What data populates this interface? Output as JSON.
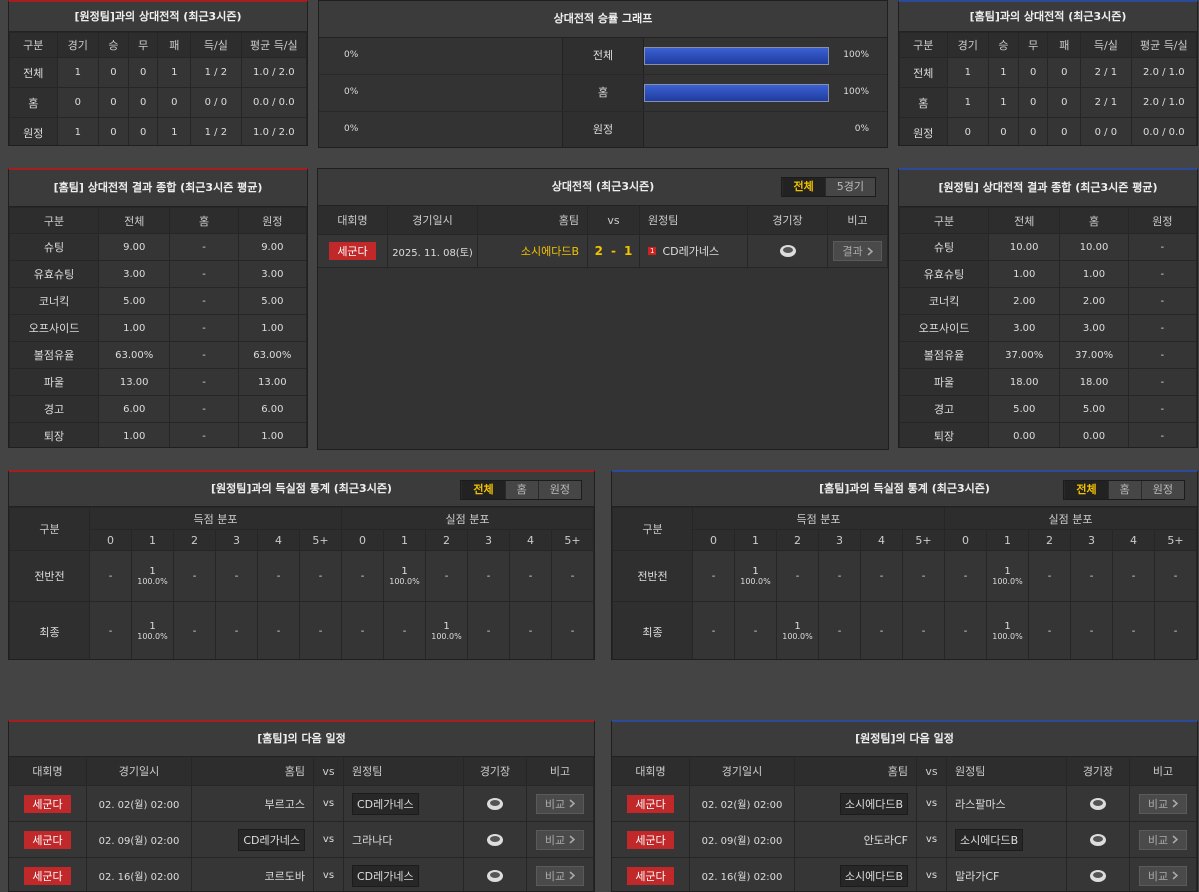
{
  "away_team_record": {
    "title": "[원정팀]과의 상대전적 (최근3시즌)",
    "columns": [
      "구분",
      "경기",
      "승",
      "무",
      "패",
      "득/실",
      "평균 득/실"
    ],
    "rows": [
      [
        "전체",
        "1",
        "0",
        "0",
        "1",
        "1 / 2",
        "1.0 / 2.0"
      ],
      [
        "홈",
        "0",
        "0",
        "0",
        "0",
        "0 / 0",
        "0.0 / 0.0"
      ],
      [
        "원정",
        "1",
        "0",
        "0",
        "1",
        "1 / 2",
        "1.0 / 2.0"
      ]
    ]
  },
  "win_rate_graph": {
    "title": "상대전적 승률 그래프",
    "rows": [
      {
        "left": "0%",
        "label": "전체",
        "right": "100%"
      },
      {
        "left": "0%",
        "label": "홈",
        "right": "100%"
      },
      {
        "left": "0%",
        "label": "원정",
        "right": "0%"
      }
    ]
  },
  "home_team_record": {
    "title": "[홈팀]과의 상대전적 (최근3시즌)",
    "columns": [
      "구분",
      "경기",
      "승",
      "무",
      "패",
      "득/실",
      "평균 득/실"
    ],
    "rows": [
      [
        "전체",
        "1",
        "1",
        "0",
        "0",
        "2 / 1",
        "2.0 / 1.0"
      ],
      [
        "홈",
        "1",
        "1",
        "0",
        "0",
        "2 / 1",
        "2.0 / 1.0"
      ],
      [
        "원정",
        "0",
        "0",
        "0",
        "0",
        "0 / 0",
        "0.0 / 0.0"
      ]
    ]
  },
  "home_summary": {
    "title": "[홈팀] 상대전적 결과 종합 (최근3시즌 평균)",
    "columns": [
      "구분",
      "전체",
      "홈",
      "원정"
    ],
    "rows": [
      [
        "슈팅",
        "9.00",
        "-",
        "9.00"
      ],
      [
        "유효슈팅",
        "3.00",
        "-",
        "3.00"
      ],
      [
        "코너킥",
        "5.00",
        "-",
        "5.00"
      ],
      [
        "오프사이드",
        "1.00",
        "-",
        "1.00"
      ],
      [
        "볼점유율",
        "63.00%",
        "-",
        "63.00%"
      ],
      [
        "파울",
        "13.00",
        "-",
        "13.00"
      ],
      [
        "경고",
        "6.00",
        "-",
        "6.00"
      ],
      [
        "퇴장",
        "1.00",
        "-",
        "1.00"
      ]
    ]
  },
  "head_to_head": {
    "title": "상대전적 (최근3시즌)",
    "tabs": [
      "전체",
      "5경기"
    ],
    "columns": [
      "대회명",
      "경기일시",
      "홈팀",
      "vs",
      "원정팀",
      "경기장",
      "비고"
    ],
    "matches": [
      {
        "league": "세군다",
        "date": "2025. 11. 08(토)",
        "home": "소시에다드B",
        "home_score": "2",
        "separator": "-",
        "away_score": "1",
        "red_cards": "1",
        "away": "CD레가네스",
        "note": "결과"
      }
    ]
  },
  "away_summary": {
    "title": "[원정팀] 상대전적 결과 종합 (최근3시즌 평균)",
    "columns": [
      "구분",
      "전체",
      "홈",
      "원정"
    ],
    "rows": [
      [
        "슈팅",
        "10.00",
        "10.00",
        "-"
      ],
      [
        "유효슈팅",
        "1.00",
        "1.00",
        "-"
      ],
      [
        "코너킥",
        "2.00",
        "2.00",
        "-"
      ],
      [
        "오프사이드",
        "3.00",
        "3.00",
        "-"
      ],
      [
        "볼점유율",
        "37.00%",
        "37.00%",
        "-"
      ],
      [
        "파울",
        "18.00",
        "18.00",
        "-"
      ],
      [
        "경고",
        "5.00",
        "5.00",
        "-"
      ],
      [
        "퇴장",
        "0.00",
        "0.00",
        "-"
      ]
    ]
  },
  "away_goal_stats": {
    "title": "[원정팀]과의 득실점 통계 (최근3시즌)",
    "tabs": [
      "전체",
      "홈",
      "원정"
    ],
    "row_header": "구분",
    "scored_title": "득점 분포",
    "conceded_title": "실점 분포",
    "scored_buckets": [
      "0",
      "1",
      "2",
      "3",
      "4",
      "5+"
    ],
    "conceded_buckets": [
      "0",
      "1",
      "2",
      "3",
      "4",
      "5+"
    ],
    "rows": [
      {
        "label": "전반전",
        "scored": [
          "-",
          {
            "count": "1",
            "pct": "100.0%"
          },
          "-",
          "-",
          "-",
          "-"
        ],
        "conceded": [
          "-",
          {
            "count": "1",
            "pct": "100.0%"
          },
          "-",
          "-",
          "-",
          "-"
        ]
      },
      {
        "label": "최종",
        "scored": [
          "-",
          {
            "count": "1",
            "pct": "100.0%"
          },
          "-",
          "-",
          "-",
          "-"
        ],
        "conceded": [
          "-",
          "-",
          {
            "count": "1",
            "pct": "100.0%"
          },
          "-",
          "-",
          "-"
        ]
      }
    ]
  },
  "home_goal_stats": {
    "title": "[홈팀]과의 득실점 통계 (최근3시즌)",
    "tabs": [
      "전체",
      "홈",
      "원정"
    ],
    "row_header": "구분",
    "scored_title": "득점 분포",
    "conceded_title": "실점 분포",
    "scored_buckets": [
      "0",
      "1",
      "2",
      "3",
      "4",
      "5+"
    ],
    "conceded_buckets": [
      "0",
      "1",
      "2",
      "3",
      "4",
      "5+"
    ],
    "rows": [
      {
        "label": "전반전",
        "scored": [
          "-",
          {
            "count": "1",
            "pct": "100.0%"
          },
          "-",
          "-",
          "-",
          "-"
        ],
        "conceded": [
          "-",
          {
            "count": "1",
            "pct": "100.0%"
          },
          "-",
          "-",
          "-",
          "-"
        ]
      },
      {
        "label": "최종",
        "scored": [
          "-",
          "-",
          {
            "count": "1",
            "pct": "100.0%"
          },
          "-",
          "-",
          "-"
        ],
        "conceded": [
          "-",
          {
            "count": "1",
            "pct": "100.0%"
          },
          "-",
          "-",
          "-",
          "-"
        ]
      }
    ]
  },
  "home_schedule": {
    "title": "[홈팀]의 다음 일정",
    "columns": [
      "대회명",
      "경기일시",
      "홈팀",
      "vs",
      "원정팀",
      "경기장",
      "비고"
    ],
    "matches": [
      {
        "league": "세군다",
        "date": "02. 02(월) 02:00",
        "home": "부르고스",
        "vs": "vs",
        "away": "CD레가네스",
        "note": "비교"
      },
      {
        "league": "세군다",
        "date": "02. 09(월) 02:00",
        "home": "CD레가네스",
        "vs": "vs",
        "away": "그라나다",
        "note": "비교"
      },
      {
        "league": "세군다",
        "date": "02. 16(월) 02:00",
        "home": "코르도바",
        "vs": "vs",
        "away": "CD레가네스",
        "note": "비교"
      }
    ]
  },
  "away_schedule": {
    "title": "[원정팀]의 다음 일정",
    "columns": [
      "대회명",
      "경기일시",
      "홈팀",
      "vs",
      "원정팀",
      "경기장",
      "비고"
    ],
    "matches": [
      {
        "league": "세군다",
        "date": "02. 02(월) 02:00",
        "home": "소시에다드B",
        "vs": "vs",
        "away": "라스팔마스",
        "note": "비교"
      },
      {
        "league": "세군다",
        "date": "02. 09(월) 02:00",
        "home": "안도라CF",
        "vs": "vs",
        "away": "소시에다드B",
        "note": "비교"
      },
      {
        "league": "세군다",
        "date": "02. 16(월) 02:00",
        "home": "소시에다드B",
        "vs": "vs",
        "away": "말라가CF",
        "note": "비교"
      }
    ]
  }
}
